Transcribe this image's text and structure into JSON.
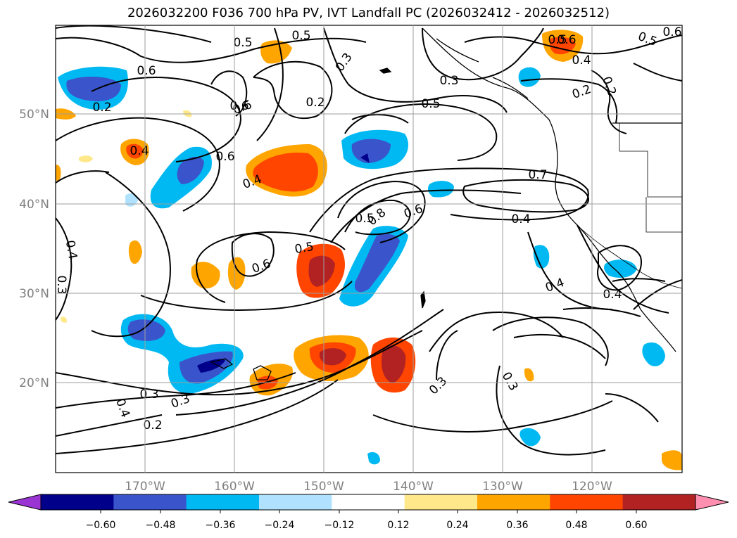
{
  "title": "2026032200 F036 700 hPa PV, IVT Landfall PC (2026032412 - 2026032512)",
  "map": {
    "lat_labels": [
      "50°N",
      "40°N",
      "30°N",
      "20°N"
    ],
    "lon_labels": [
      "170°W",
      "160°W",
      "150°W",
      "140°W",
      "130°W",
      "120°W"
    ],
    "contour_labels": [
      "0.5",
      "0.3",
      "0.6",
      "0.5",
      "0.6",
      "0.6",
      "0.4",
      "0.2",
      "0.5",
      "0.3",
      "0.6",
      "0.4",
      "0.7",
      "0.4",
      "0.6",
      "0.8",
      "0.5",
      "0.4",
      "0.6",
      "0.5",
      "0.3",
      "0.2",
      "0.4",
      "0.4",
      "0.3",
      "0.3",
      "0.3",
      "0.4",
      "0.2",
      "0.3",
      "0.2",
      "0.6",
      "0.5",
      "0.6",
      "0.5",
      "0.2",
      "0.4"
    ],
    "extent": {
      "lon_min": -180,
      "lon_max": -110,
      "lat_min": 10,
      "lat_max": 60
    }
  },
  "colorbar": {
    "ticks": [
      "−0.60",
      "−0.48",
      "−0.36",
      "−0.24",
      "−0.12",
      "0.12",
      "0.24",
      "0.36",
      "0.48",
      "0.60"
    ],
    "colors": [
      "#9a35d4",
      "#00008b",
      "#3a55cc",
      "#00b9f2",
      "#b0e2ff",
      "#ffffff",
      "#ffe88a",
      "#ffa500",
      "#ff4500",
      "#b22222",
      "#ff8fb0"
    ]
  }
}
